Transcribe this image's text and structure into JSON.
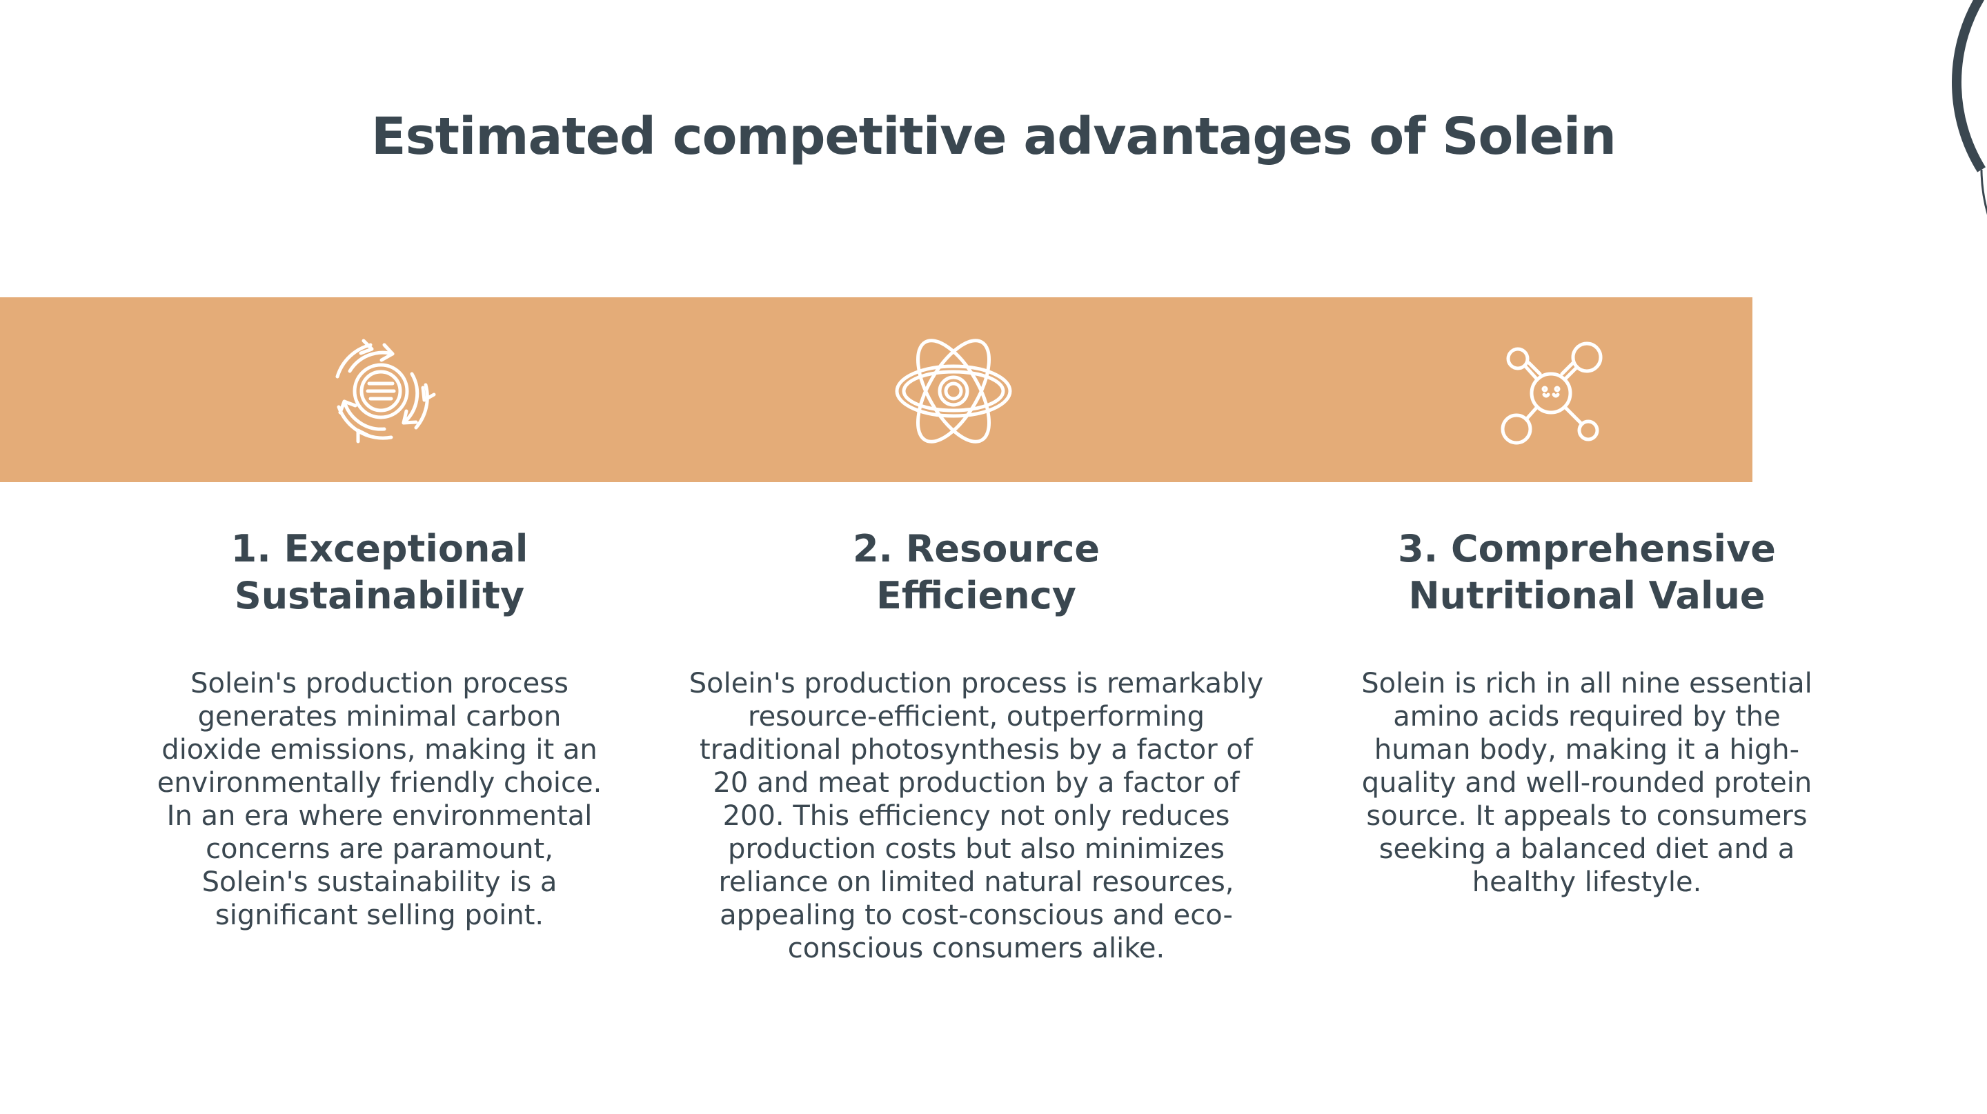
{
  "colors": {
    "band": "#e4ac78",
    "text": "#3a4750",
    "icon": "#ffffff",
    "background": "#ffffff"
  },
  "title": "Estimated competitive advantages of Solein",
  "columns": [
    {
      "icon": "recycle-cycle-icon",
      "heading": "1. Exceptional\nSustainability",
      "body": "Solein's production process\ngenerates minimal carbon\ndioxide emissions, making it an\nenvironmentally friendly choice.\nIn an era where environmental\nconcerns are paramount,\nSolein's sustainability is a\nsignificant selling point."
    },
    {
      "icon": "atom-icon",
      "heading": "2. Resource\nEfficiency",
      "body": "Solein's production process is remarkably\nresource-efficient, outperforming\ntraditional photosynthesis by a factor of\n20 and meat production by a factor of\n200. This efficiency not only reduces\nproduction costs but also minimizes\nreliance on limited natural resources,\nappealing to cost-conscious and eco-\nconscious consumers alike."
    },
    {
      "icon": "molecule-icon",
      "heading": "3. Comprehensive\nNutritional Value",
      "body": "Solein is rich in all nine essential\namino acids required by the\nhuman body, making it a high-\nquality and well-rounded protein\nsource. It appeals to consumers\nseeking a balanced diet and a\nhealthy lifestyle."
    }
  ]
}
